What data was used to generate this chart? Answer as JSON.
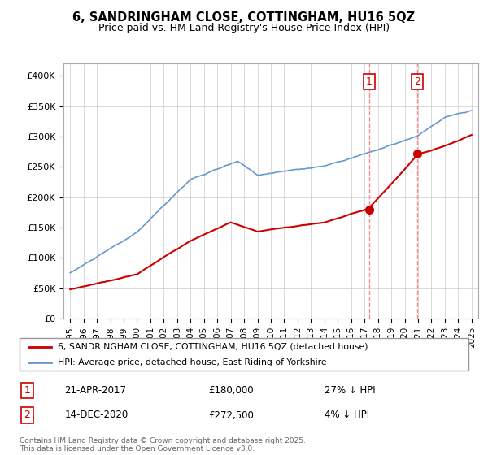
{
  "title1": "6, SANDRINGHAM CLOSE, COTTINGHAM, HU16 5QZ",
  "title2": "Price paid vs. HM Land Registry's House Price Index (HPI)",
  "ytick_vals": [
    0,
    50000,
    100000,
    150000,
    200000,
    250000,
    300000,
    350000,
    400000
  ],
  "ylim": [
    0,
    420000
  ],
  "sale1_date": "21-APR-2017",
  "sale1_price": 180000,
  "sale1_hpi": "27% ↓ HPI",
  "sale2_date": "14-DEC-2020",
  "sale2_price": 272500,
  "sale2_hpi": "4% ↓ HPI",
  "legend_line1": "6, SANDRINGHAM CLOSE, COTTINGHAM, HU16 5QZ (detached house)",
  "legend_line2": "HPI: Average price, detached house, East Riding of Yorkshire",
  "footer": "Contains HM Land Registry data © Crown copyright and database right 2025.\nThis data is licensed under the Open Government Licence v3.0.",
  "hpi_color": "#6699cc",
  "price_color": "#cc0000",
  "vline_color": "#ff8888",
  "grid_color": "#cccccc"
}
